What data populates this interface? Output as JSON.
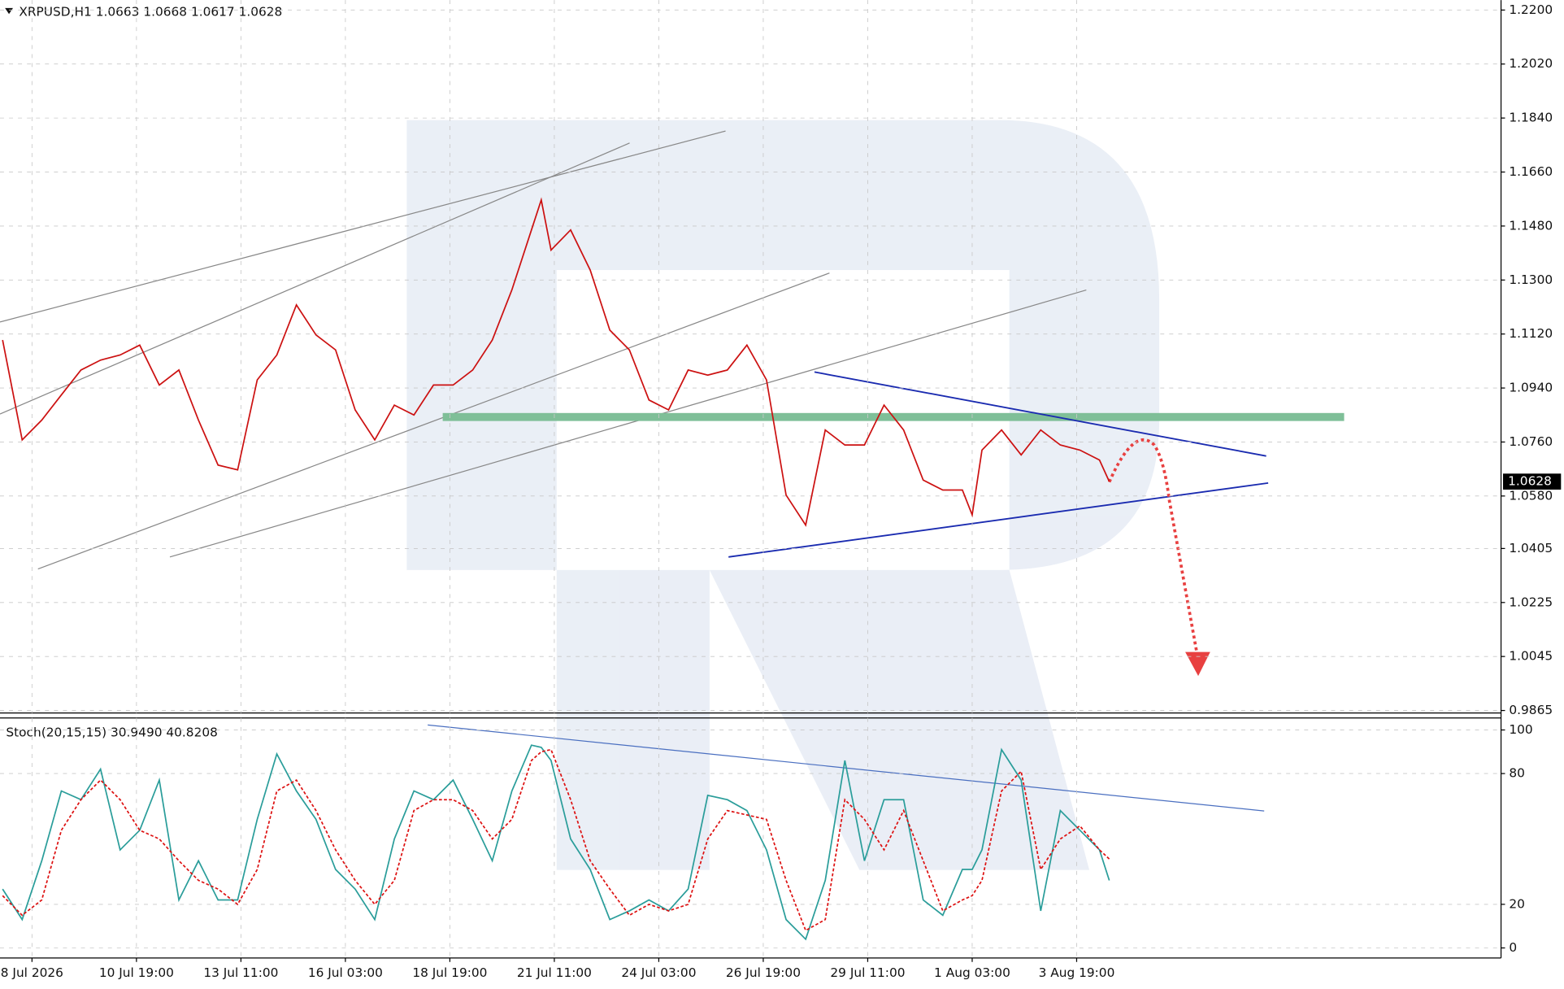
{
  "chart_data": [
    {
      "type": "line",
      "title": "XRPUSD,H1 1.0663 1.0668 1.0617 1.0628",
      "last_price_label": "1.0628",
      "x": [
        -18,
        -6,
        6,
        18,
        30,
        42,
        54,
        66,
        78,
        90,
        102,
        114,
        126,
        138,
        150,
        162,
        174,
        186,
        198,
        210,
        222,
        234,
        246,
        258,
        270,
        282,
        294,
        306,
        312,
        318,
        330,
        342,
        354,
        366,
        378,
        390,
        402,
        414,
        426,
        438,
        450,
        462,
        474,
        486,
        498,
        510,
        522,
        534,
        546,
        558,
        570,
        576,
        582,
        594,
        606,
        618,
        630,
        642,
        654,
        660
      ],
      "series": [
        {
          "color": "#cc1111",
          "values": [
            1.11,
            1.0767,
            1.0833,
            1.0917,
            1.1,
            1.1033,
            1.105,
            1.1083,
            1.095,
            1.1,
            1.0833,
            1.0683,
            1.0667,
            1.0967,
            1.105,
            1.1217,
            1.1117,
            1.1067,
            1.0867,
            1.0767,
            1.0883,
            1.085,
            1.095,
            1.095,
            1.1,
            1.11,
            1.1267,
            1.1467,
            1.1567,
            1.14,
            1.1467,
            1.1333,
            1.1133,
            1.1067,
            1.09,
            1.0867,
            1.1,
            1.0983,
            1.1,
            1.1083,
            1.0967,
            1.0583,
            1.0483,
            1.08,
            1.075,
            1.075,
            1.0883,
            1.08,
            1.0633,
            1.06,
            1.06,
            1.0517,
            1.0733,
            1.08,
            1.0717,
            1.08,
            1.075,
            1.0733,
            1.07,
            1.0628
          ]
        }
      ],
      "xlim": [
        -19.6,
        900
      ],
      "ylim": [
        0.98567,
        1.22333
      ],
      "yticks": [
        {
          "value": 1.22,
          "label": "1.2200"
        },
        {
          "value": 1.202,
          "label": "1.2020"
        },
        {
          "value": 1.184,
          "label": "1.1840"
        },
        {
          "value": 1.166,
          "label": "1.1660"
        },
        {
          "value": 1.148,
          "label": "1.1480"
        },
        {
          "value": 1.13,
          "label": "1.1300"
        },
        {
          "value": 1.112,
          "label": "1.1120"
        },
        {
          "value": 1.094,
          "label": "1.0940"
        },
        {
          "value": 1.076,
          "label": "1.0760"
        },
        {
          "value": 1.058,
          "label": "1.0580"
        },
        {
          "value": 1.0405,
          "label": "1.0405"
        },
        {
          "value": 1.0225,
          "label": "1.0225"
        },
        {
          "value": 1.0045,
          "label": "1.0045"
        },
        {
          "value": 0.9865,
          "label": "0.9865"
        }
      ],
      "grid": true
    },
    {
      "type": "line",
      "title": "Stoch(20,15,15) 30.9490 40.8208",
      "x": [
        -18,
        -6,
        6,
        18,
        30,
        42,
        54,
        66,
        78,
        90,
        102,
        114,
        126,
        138,
        150,
        162,
        174,
        186,
        198,
        210,
        222,
        234,
        246,
        258,
        270,
        282,
        294,
        306,
        312,
        318,
        330,
        342,
        354,
        366,
        378,
        390,
        402,
        414,
        426,
        438,
        450,
        462,
        474,
        486,
        498,
        510,
        522,
        534,
        546,
        558,
        570,
        576,
        582,
        594,
        606,
        618,
        630,
        642,
        654,
        660
      ],
      "series": [
        {
          "color": "#2a9d9a",
          "dashed": false,
          "values": [
            27,
            13,
            40,
            72,
            68,
            82,
            45,
            54,
            77,
            22,
            40,
            22,
            22,
            59,
            89,
            72,
            59,
            36,
            27,
            13,
            50,
            72,
            68,
            77,
            59,
            40,
            72,
            93,
            92,
            86,
            50,
            36,
            13,
            17,
            22,
            17,
            27,
            70,
            68,
            63,
            45,
            13,
            4,
            31,
            86,
            40,
            68,
            68,
            22,
            15,
            36,
            36,
            45,
            91,
            77,
            17,
            63,
            54,
            45,
            30.949
          ]
        },
        {
          "color": "#dd1111",
          "dashed": true,
          "values": [
            24,
            15,
            22,
            54,
            68,
            77,
            68,
            54,
            50,
            40,
            31,
            27,
            20,
            36,
            72,
            77,
            63,
            45,
            31,
            20,
            31,
            63,
            68,
            68,
            63,
            50,
            59,
            86,
            90,
            91,
            68,
            40,
            27,
            15,
            20,
            17,
            20,
            50,
            63,
            61,
            59,
            31,
            8,
            13,
            68,
            59,
            45,
            63,
            40,
            17,
            22,
            24,
            31,
            72,
            81,
            36,
            50,
            56,
            45,
            40.8208
          ]
        }
      ],
      "xlim": [
        -19.6,
        900
      ],
      "ylim": [
        -4.6,
        105.5
      ],
      "yticks": [
        0,
        20,
        80,
        100
      ],
      "xticks": [
        {
          "value": 0,
          "label": "8 Jul 2026"
        },
        {
          "value": 64,
          "label": "10 Jul 19:00"
        },
        {
          "value": 128,
          "label": "13 Jul 11:00"
        },
        {
          "value": 192,
          "label": "16 Jul 03:00"
        },
        {
          "value": 256,
          "label": "18 Jul 19:00"
        },
        {
          "value": 320,
          "label": "21 Jul 11:00"
        },
        {
          "value": 384,
          "label": "24 Jul 03:00"
        },
        {
          "value": 448,
          "label": "26 Jul 19:00"
        },
        {
          "value": 512,
          "label": "29 Jul 11:00"
        },
        {
          "value": 576,
          "label": "1 Aug 03:00"
        },
        {
          "value": 640,
          "label": "3 Aug 19:00"
        }
      ],
      "grid": true
    }
  ]
}
